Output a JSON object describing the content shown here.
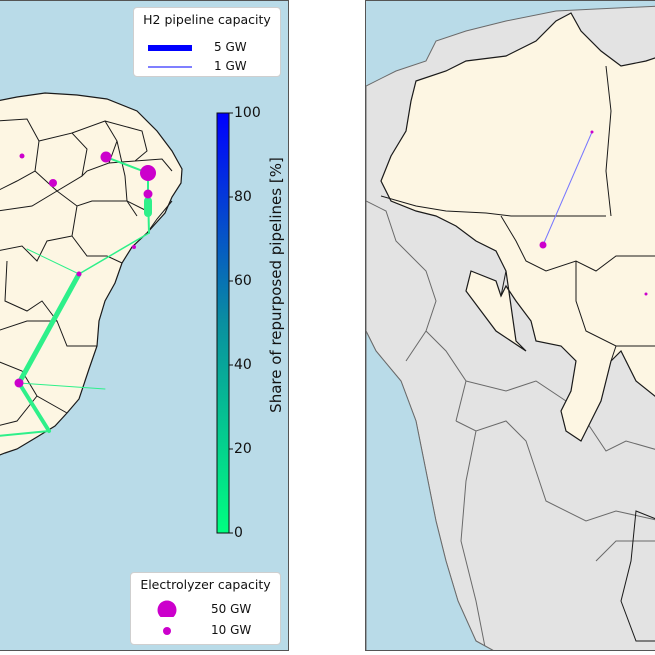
{
  "left_panel": {
    "pipeline_legend": {
      "title": "H2 pipeline capacity",
      "items": [
        {
          "label": "5 GW",
          "capacity_gw": 5,
          "color": "#0000ff"
        },
        {
          "label": "1 GW",
          "capacity_gw": 1,
          "color": "#3333ff"
        }
      ]
    },
    "colorbar": {
      "label": "Share of repurposed pipelines [%]",
      "ticks": [
        "0",
        "20",
        "40",
        "60",
        "80",
        "100"
      ],
      "min": 0,
      "max": 100,
      "color_low": "#00ff80",
      "color_high": "#0000ff"
    },
    "electrolyzer_legend": {
      "title": "Electrolyzer capacity",
      "items": [
        {
          "label": "50 GW",
          "capacity_gw": 50
        },
        {
          "label": "10 GW",
          "capacity_gw": 10
        }
      ],
      "color": "#cc00cc"
    },
    "colors": {
      "ocean": "#b9dbe8",
      "land": "#fdf6e3",
      "border": "#1a1a1a",
      "pipeline": "#2ef08a"
    }
  },
  "right_panel": {
    "colors": {
      "ocean": "#b9dbe8",
      "land_focus": "#fdf6e3",
      "land_other": "#e3e3e3",
      "border": "#1a1a1a",
      "pipeline": "#7777ff",
      "node": "#cc00cc"
    }
  }
}
